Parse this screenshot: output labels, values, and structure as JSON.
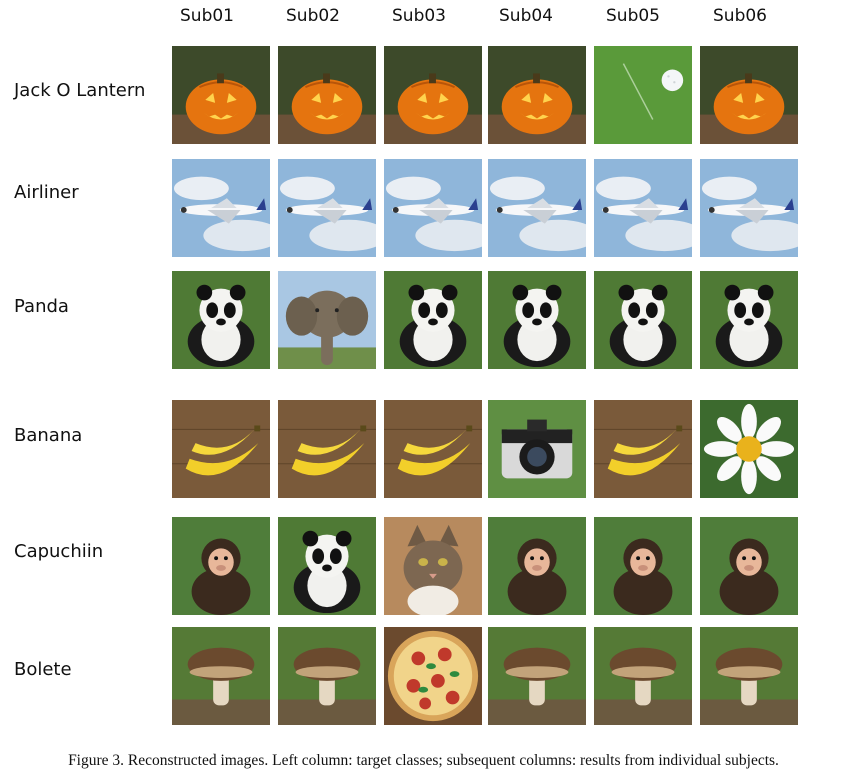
{
  "subjects": [
    "Sub01",
    "Sub02",
    "Sub03",
    "Sub04",
    "Sub05",
    "Sub06"
  ],
  "rows": [
    {
      "label": "Jack O Lantern",
      "images": [
        "jack-o-lantern",
        "jack-o-lantern",
        "jack-o-lantern",
        "jack-o-lantern",
        "golf-ball",
        "jack-o-lantern"
      ]
    },
    {
      "label": "Airliner",
      "images": [
        "airliner",
        "airliner",
        "airliner",
        "airliner",
        "airliner",
        "airliner"
      ]
    },
    {
      "label": "Panda",
      "images": [
        "panda",
        "elephant",
        "panda",
        "panda",
        "panda",
        "panda"
      ]
    },
    {
      "label": "Banana",
      "images": [
        "banana",
        "banana",
        "banana",
        "camera",
        "banana",
        "daisy"
      ]
    },
    {
      "label": "Capuchiin",
      "images": [
        "monkey",
        "panda",
        "cat",
        "monkey",
        "monkey",
        "monkey"
      ]
    },
    {
      "label": "Bolete",
      "images": [
        "mushroom",
        "mushroom",
        "pizza",
        "mushroom",
        "mushroom",
        "mushroom"
      ]
    }
  ],
  "caption": "Figure 3. Reconstructed images. Left column: target classes; subsequent columns: results from individual subjects."
}
